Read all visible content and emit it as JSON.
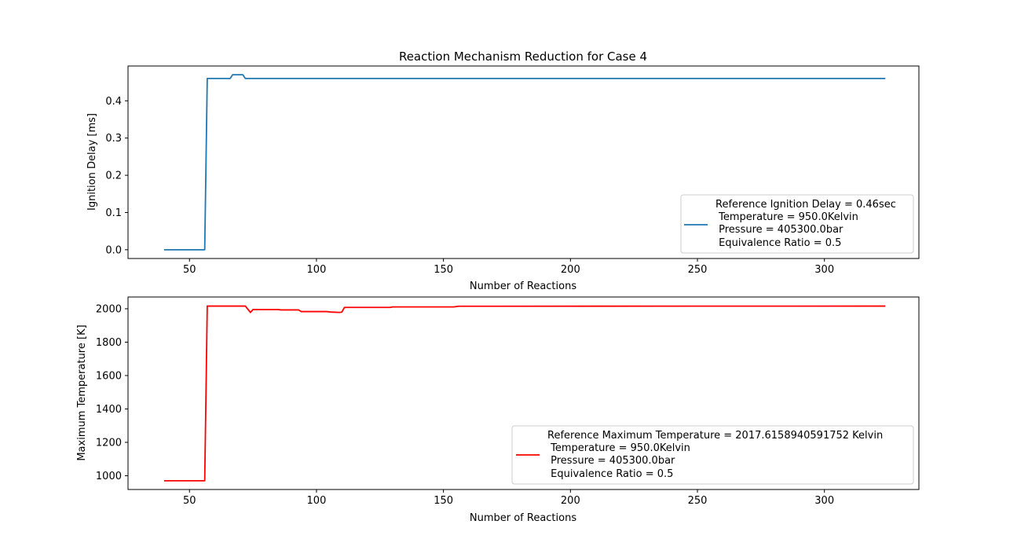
{
  "title": "Reaction Mechanism Reduction for Case 4",
  "chart_data": [
    {
      "type": "line",
      "xlabel": "Number of Reactions",
      "ylabel": "Ignition Delay [ms]",
      "xlim": [
        25.8,
        337.2
      ],
      "ylim": [
        -0.0235,
        0.4935
      ],
      "xticks": [
        50,
        100,
        150,
        200,
        250,
        300
      ],
      "yticks": [
        0.0,
        0.1,
        0.2,
        0.3,
        0.4
      ],
      "xtick_labels": [
        "50",
        "100",
        "150",
        "200",
        "250",
        "300"
      ],
      "ytick_labels": [
        "0.0",
        "0.1",
        "0.2",
        "0.3",
        "0.4"
      ],
      "legend_position": "lower-right",
      "series": [
        {
          "name": "Reference Ignition Delay = 0.46sec\n Temperature = 950.0Kelvin\n Pressure = 405300.0bar\n Equivalence Ratio = 0.5",
          "legend_lines": [
            "Reference Ignition Delay = 0.46sec",
            " Temperature = 950.0Kelvin",
            " Pressure = 405300.0bar",
            " Equivalence Ratio = 0.5"
          ],
          "color": "#1f77b4",
          "x": [
            40,
            56,
            57,
            66,
            67,
            71,
            72,
            324
          ],
          "y": [
            0.0,
            0.0,
            0.46,
            0.46,
            0.47,
            0.47,
            0.46,
            0.46
          ]
        }
      ]
    },
    {
      "type": "line",
      "xlabel": "Number of Reactions",
      "ylabel": "Maximum Temperature [K]",
      "xlim": [
        25.8,
        337.2
      ],
      "ylim": [
        917.6,
        2070.4
      ],
      "xticks": [
        50,
        100,
        150,
        200,
        250,
        300
      ],
      "yticks": [
        1000,
        1200,
        1400,
        1600,
        1800,
        2000
      ],
      "xtick_labels": [
        "50",
        "100",
        "150",
        "200",
        "250",
        "300"
      ],
      "ytick_labels": [
        "1000",
        "1200",
        "1400",
        "1600",
        "1800",
        "2000"
      ],
      "legend_position": "lower-right",
      "series": [
        {
          "name": "Reference Maximum Temperature = 2017.6158940591752 Kelvin\n Temperature = 950.0Kelvin\n Pressure = 405300.0bar\n Equivalence Ratio = 0.5",
          "legend_lines": [
            "Reference Maximum Temperature = 2017.6158940591752 Kelvin",
            " Temperature = 950.0Kelvin",
            " Pressure = 405300.0bar",
            " Equivalence Ratio = 0.5"
          ],
          "color": "#ff0000",
          "x": [
            40,
            56,
            57,
            72,
            73,
            74,
            75,
            85,
            86,
            93,
            94,
            104,
            106,
            109,
            110,
            111,
            129,
            130,
            154,
            156,
            324
          ],
          "y": [
            970,
            970,
            2016,
            2016,
            1997,
            1978,
            1995,
            1995,
            1993,
            1993,
            1983,
            1983,
            1980,
            1978,
            1980,
            2008,
            2008,
            2011,
            2011,
            2015,
            2016
          ]
        }
      ]
    }
  ]
}
